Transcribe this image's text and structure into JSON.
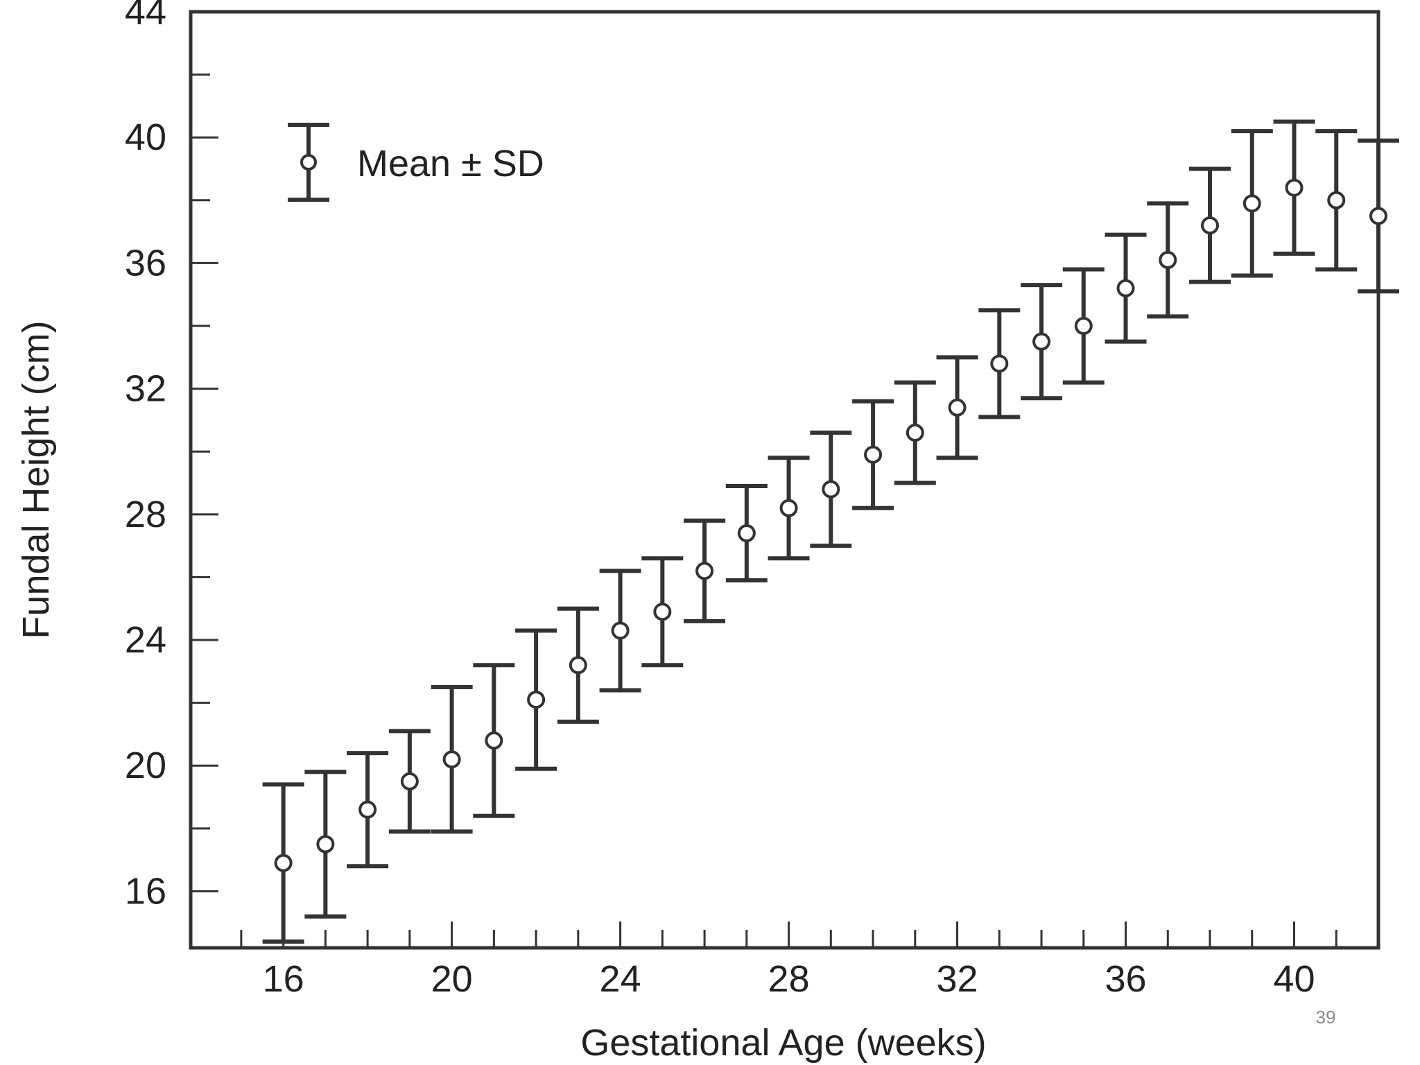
{
  "slide": {
    "page_number": "39"
  },
  "chart_data": {
    "type": "scatter",
    "title": "",
    "xlabel": "Gestational Age (weeks)",
    "ylabel": "Fundal Height (cm)",
    "xlim": [
      13.8,
      42.0
    ],
    "ylim": [
      14.2,
      44
    ],
    "x_ticks": [
      16,
      20,
      24,
      28,
      32,
      36,
      40
    ],
    "y_ticks": [
      16,
      20,
      24,
      28,
      32,
      36,
      40,
      44
    ],
    "legend": {
      "label": "Mean ± SD",
      "placement": "top-left"
    },
    "series": [
      {
        "name": "Mean ± SD",
        "x": [
          16,
          17,
          18,
          19,
          20,
          21,
          22,
          23,
          24,
          25,
          26,
          27,
          28,
          29,
          30,
          31,
          32,
          33,
          34,
          35,
          36,
          37,
          38,
          39,
          40,
          41,
          42
        ],
        "mean": [
          16.9,
          17.5,
          18.6,
          19.5,
          20.2,
          20.8,
          22.1,
          23.2,
          24.3,
          24.9,
          26.2,
          27.4,
          28.2,
          28.8,
          29.9,
          30.6,
          31.4,
          32.8,
          33.5,
          34.0,
          35.2,
          36.1,
          37.2,
          37.9,
          38.4,
          38.0,
          37.5
        ],
        "sd": [
          2.5,
          2.3,
          1.8,
          1.6,
          2.3,
          2.4,
          2.2,
          1.8,
          1.9,
          1.7,
          1.6,
          1.5,
          1.6,
          1.8,
          1.7,
          1.6,
          1.6,
          1.7,
          1.8,
          1.8,
          1.7,
          1.8,
          1.8,
          2.3,
          2.1,
          2.2,
          2.4
        ]
      }
    ],
    "colors": {
      "marks": "#333333",
      "frame": "#333333",
      "marker_fill": "#ffffff"
    }
  }
}
